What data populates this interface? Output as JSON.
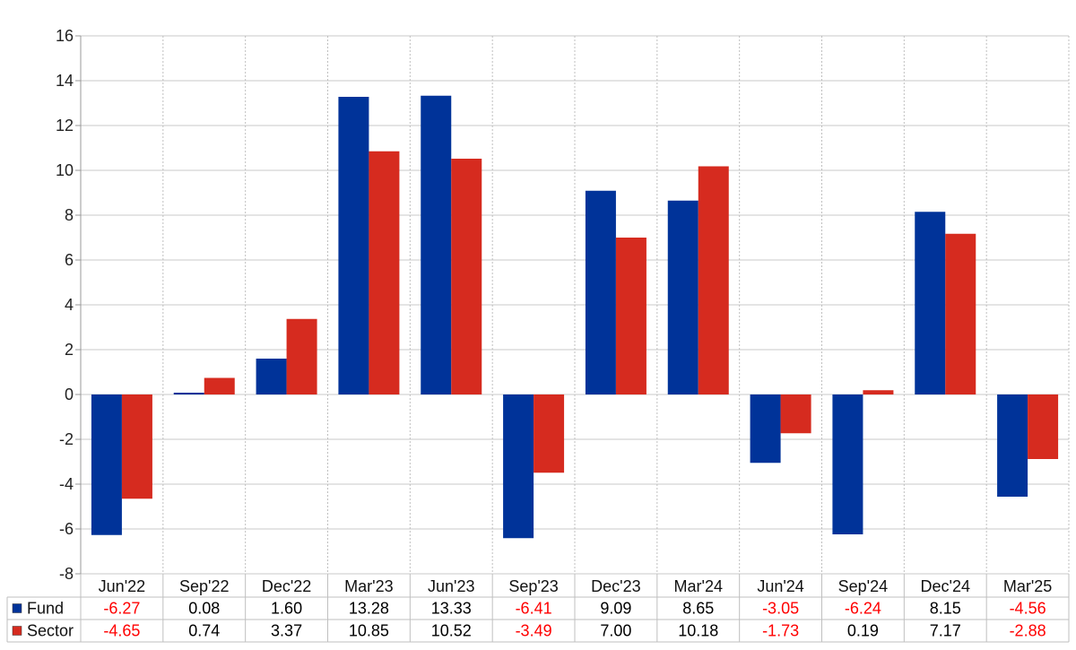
{
  "chart_data": {
    "type": "bar",
    "categories": [
      "Jun'22",
      "Sep'22",
      "Dec'22",
      "Mar'23",
      "Jun'23",
      "Sep'23",
      "Dec'23",
      "Mar'24",
      "Jun'24",
      "Sep'24",
      "Dec'24",
      "Mar'25"
    ],
    "series": [
      {
        "name": "Fund",
        "color": "#003399",
        "values": [
          -6.27,
          0.08,
          1.6,
          13.28,
          13.33,
          -6.41,
          9.09,
          8.65,
          -3.05,
          -6.24,
          8.15,
          -4.56
        ],
        "labels": [
          "-6.27",
          "0.08",
          "1.60",
          "13.28",
          "13.33",
          "-6.41",
          "9.09",
          "8.65",
          "-3.05",
          "-6.24",
          "8.15",
          "-4.56"
        ]
      },
      {
        "name": "Sector",
        "color": "#d62b1f",
        "values": [
          -4.65,
          0.74,
          3.37,
          10.85,
          10.52,
          -3.49,
          7.0,
          10.18,
          -1.73,
          0.19,
          7.17,
          -2.88
        ],
        "labels": [
          "-4.65",
          "0.74",
          "3.37",
          "10.85",
          "10.52",
          "-3.49",
          "7.00",
          "10.18",
          "-1.73",
          "0.19",
          "7.17",
          "-2.88"
        ]
      }
    ],
    "ylim": [
      -8,
      16
    ],
    "yticks": [
      -8,
      -6,
      -4,
      -2,
      0,
      2,
      4,
      6,
      8,
      10,
      12,
      14,
      16
    ],
    "grid": true,
    "legend": "data-table-left",
    "negative_value_color": "#ff0000",
    "positive_value_color": "#000000"
  }
}
